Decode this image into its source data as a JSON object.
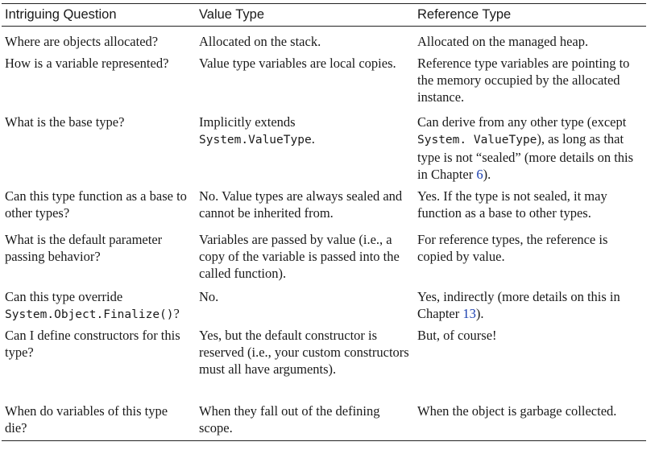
{
  "table": {
    "headers": [
      "Intriguing Question",
      "Value Type",
      "Reference Type"
    ],
    "rows": [
      {
        "question": "Where are objects allocated?",
        "value_type": "Allocated on the stack.",
        "reference_type": "Allocated on the managed heap."
      },
      {
        "question": "How is a variable represented?",
        "value_type": "Value type variables are local copies.",
        "reference_type": "Reference type variables are pointing to the memory occupied by the allocated instance."
      },
      {
        "question": "What is the base type?",
        "value_type": {
          "text": "Implicitly extends",
          "code": "System.ValueType",
          "after": "."
        },
        "reference_type": {
          "pre": "Can derive from any other type (except",
          "code": "System. ValueType",
          "mid": "), as long as that type is not “sealed” (more details on this in Chapter",
          "link": "6",
          "after": ")."
        }
      },
      {
        "question": "Can this type function as a base to other types?",
        "value_type": "No. Value types are always sealed and cannot be inherited from.",
        "reference_type": "Yes. If the type is not sealed, it may function as a base to other types."
      },
      {
        "question": "What is the default parameter passing behavior?",
        "value_type": "Variables are passed by value (i.e., a copy of the variable is passed into the called function).",
        "reference_type": "For reference types, the reference is copied by value."
      },
      {
        "question": {
          "text": "Can this type override",
          "code": "System.Object.Finalize()",
          "after": "?"
        },
        "value_type": "No.",
        "reference_type": {
          "pre": "Yes, indirectly (more details on this in Chapter",
          "link": "13",
          "after": ")."
        }
      },
      {
        "question": "Can I define constructors for this type?",
        "value_type": "Yes, but the default constructor is reserved (i.e., your custom constructors must all have arguments).",
        "reference_type": "But, of course!"
      },
      {
        "question": "When do variables of this type die?",
        "value_type": "When they fall out of the defining scope.",
        "reference_type": "When the object is garbage collected."
      }
    ]
  }
}
